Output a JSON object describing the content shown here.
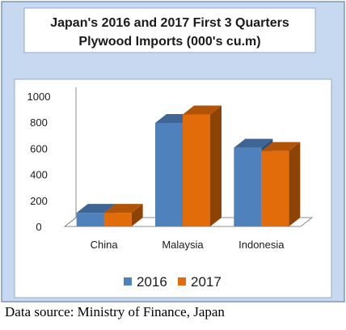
{
  "chart_data": {
    "type": "bar",
    "title_lines": [
      "Japan's 2016 and 2017 First 3 Quarters",
      "Plywood Imports (000's cu.m)"
    ],
    "categories": [
      "China",
      "Malaysia",
      "Indonesia"
    ],
    "series": [
      {
        "name": "2016",
        "values": [
          105,
          795,
          605
        ],
        "color": "#4f81bd"
      },
      {
        "name": "2017",
        "values": [
          105,
          860,
          580
        ],
        "color": "#e36c0a"
      }
    ],
    "yticks": [
      "0",
      "200",
      "400",
      "600",
      "800",
      "1000"
    ],
    "ylim": [
      0,
      1000
    ],
    "grid": false,
    "legend_position": "bottom"
  },
  "footer": {
    "source": "Data source: Ministry of Finance, Japan"
  }
}
